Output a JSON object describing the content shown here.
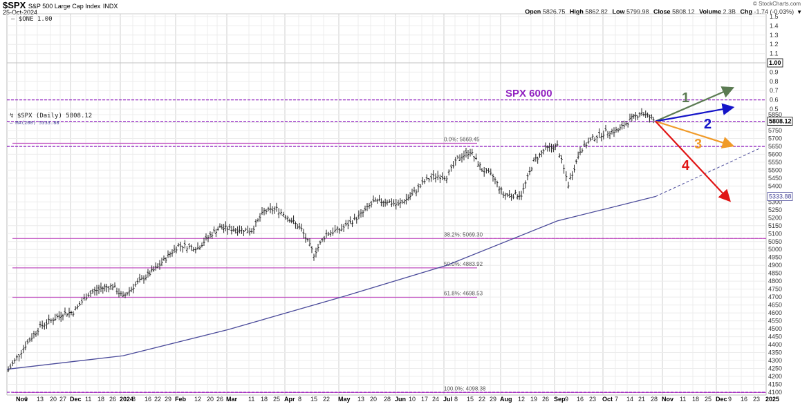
{
  "header": {
    "symbol": "$SPX",
    "name": "S&P 500 Large Cap Index",
    "exchange": "INDX",
    "date": "25-Oct-2024",
    "brand": "© StockCharts.com",
    "ohlc": {
      "open_label": "Open",
      "open": "5826.75",
      "high_label": "High",
      "high": "5862.82",
      "low_label": "Low",
      "low": "5799.98",
      "close_label": "Close",
      "close": "5808.12",
      "volume_label": "Volume",
      "volume": "2.3B",
      "chg_label": "Chg",
      "chg": "-1.74 (-0.03%)",
      "menu_icon": "triangle-down"
    }
  },
  "upper_panel": {
    "legend": "$ONE 1.00",
    "ticks": [
      "1.5",
      "1.4",
      "1.3",
      "1.2",
      "1.1",
      "1.00",
      "0.9",
      "0.8",
      "0.7",
      "0.6",
      "0.5"
    ],
    "current_label": "1.00"
  },
  "legend": {
    "price": "$SPX (Daily) 5808.12",
    "ma": "MA(200) 5333.88"
  },
  "annotations": {
    "spx6000": "SPX 6000",
    "scenarios": [
      {
        "label": "1",
        "color": "#5b7b52"
      },
      {
        "label": "2",
        "color": "#1414c8"
      },
      {
        "label": "3",
        "color": "#f09a28"
      },
      {
        "label": "4",
        "color": "#e01414"
      }
    ]
  },
  "price_labels": {
    "close_tag": "5808.12",
    "ma_tag": "5333.88"
  },
  "fib": [
    {
      "label": "0.0%: 5669.45",
      "value": 5669.45
    },
    {
      "label": "38.2%: 5069.30",
      "value": 5069.3
    },
    {
      "label": "50.0%: 4883.92",
      "value": 4883.92
    },
    {
      "label": "61.8%: 4698.53",
      "value": 4698.53
    },
    {
      "label": "100.0%: 4098.38",
      "value": 4098.38
    }
  ],
  "colors": {
    "price_bars": "#222222",
    "ma": "#4a4a9a",
    "fib": "#c050c0",
    "dashed": "#9020c0",
    "grid": "#e2e2e2"
  },
  "chart_data": {
    "type": "bar",
    "title": "$SPX S&P 500 Large Cap Index INDX",
    "subtitle": "25-Oct-2024",
    "xlabel": "",
    "ylabel": "",
    "ylim": [
      4100,
      5850
    ],
    "y_ticks": [
      4100,
      4150,
      4200,
      4250,
      4300,
      4350,
      4400,
      4450,
      4500,
      4550,
      4600,
      4650,
      4700,
      4750,
      4800,
      4850,
      4900,
      4950,
      5000,
      5050,
      5100,
      5150,
      5200,
      5250,
      5300,
      5350,
      5400,
      5450,
      5500,
      5550,
      5600,
      5650,
      5700,
      5750,
      5800,
      5850
    ],
    "x_tick_labels": [
      "Nov",
      "6",
      "13",
      "20",
      "27",
      "Dec",
      "11",
      "18",
      "26",
      "2024",
      "8",
      "16",
      "22",
      "29",
      "Feb",
      "12",
      "20",
      "26",
      "Mar",
      "11",
      "18",
      "25",
      "Apr",
      "8",
      "15",
      "22",
      "May",
      "6",
      "13",
      "20",
      "28",
      "Jun",
      "10",
      "17",
      "24",
      "Jul",
      "8",
      "15",
      "22",
      "29",
      "Aug",
      "12",
      "19",
      "26",
      "Sep",
      "9",
      "16",
      "23",
      "Oct",
      "7",
      "14",
      "21",
      "28",
      "Nov",
      "11",
      "18",
      "25",
      "Dec",
      "9",
      "16",
      "23",
      "2025"
    ],
    "grid": true,
    "legend": [
      "$SPX (Daily) 5808.12",
      "MA(200) 5333.88"
    ],
    "series": [
      {
        "name": "$SPX (Daily) approx weekly closes",
        "x": [
          "2023-11-01",
          "2023-11-06",
          "2023-11-13",
          "2023-11-20",
          "2023-11-27",
          "2023-12-04",
          "2023-12-11",
          "2023-12-18",
          "2023-12-26",
          "2024-01-02",
          "2024-01-08",
          "2024-01-16",
          "2024-01-22",
          "2024-01-29",
          "2024-02-05",
          "2024-02-12",
          "2024-02-20",
          "2024-02-26",
          "2024-03-04",
          "2024-03-11",
          "2024-03-18",
          "2024-03-25",
          "2024-04-01",
          "2024-04-08",
          "2024-04-15",
          "2024-04-22",
          "2024-04-29",
          "2024-05-06",
          "2024-05-13",
          "2024-05-20",
          "2024-05-28",
          "2024-06-03",
          "2024-06-10",
          "2024-06-17",
          "2024-06-24",
          "2024-07-01",
          "2024-07-08",
          "2024-07-15",
          "2024-07-22",
          "2024-07-29",
          "2024-08-05",
          "2024-08-12",
          "2024-08-19",
          "2024-08-26",
          "2024-09-03",
          "2024-09-09",
          "2024-09-16",
          "2024-09-23",
          "2024-09-30",
          "2024-10-07",
          "2024-10-14",
          "2024-10-21"
        ],
        "values": [
          4240,
          4415,
          4515,
          4560,
          4595,
          4605,
          4720,
          4755,
          4770,
          4700,
          4780,
          4840,
          4890,
          4960,
          5025,
          5010,
          5090,
          5140,
          5130,
          5120,
          5240,
          5255,
          5205,
          5125,
          4970,
          5100,
          5130,
          5220,
          5300,
          5305,
          5280,
          5345,
          5430,
          5465,
          5460,
          5570,
          5620,
          5505,
          5460,
          5345,
          5345,
          5555,
          5635,
          5650,
          5410,
          5625,
          5700,
          5740,
          5750,
          5815,
          5865,
          5808
        ]
      },
      {
        "name": "MA(200)",
        "x": [
          "2023-11-01",
          "2024-01-02",
          "2024-03-01",
          "2024-05-01",
          "2024-07-01",
          "2024-09-01",
          "2024-10-25"
        ],
        "values": [
          4245,
          4330,
          4495,
          4700,
          4900,
          5180,
          5333.88
        ]
      },
      {
        "name": "$ONE",
        "values": [
          1.0
        ]
      }
    ],
    "horizontal_lines": [
      {
        "label": "SPX 6000",
        "style": "dashed",
        "color": "#9020c0"
      },
      {
        "value": 5808.12,
        "style": "dashed",
        "color": "#9020c0"
      },
      {
        "value": 5650,
        "style": "dashed",
        "color": "#9020c0"
      },
      {
        "value": 5069.3,
        "label": "38.2%",
        "style": "solid/dashed",
        "color": "#c050c0"
      },
      {
        "value": 4100,
        "style": "dashed",
        "color": "#9020c0"
      }
    ],
    "scenario_arrows": [
      {
        "label": "1",
        "from": 5808,
        "to": "above 6000",
        "color": "#5b7b52"
      },
      {
        "label": "2",
        "from": 5808,
        "to": "~6000 (below)",
        "color": "#1414c8"
      },
      {
        "label": "3",
        "from": 5808,
        "to": 5650,
        "color": "#f09a28"
      },
      {
        "label": "4",
        "from": 5808,
        "to": 5250,
        "color": "#e01414"
      }
    ]
  }
}
